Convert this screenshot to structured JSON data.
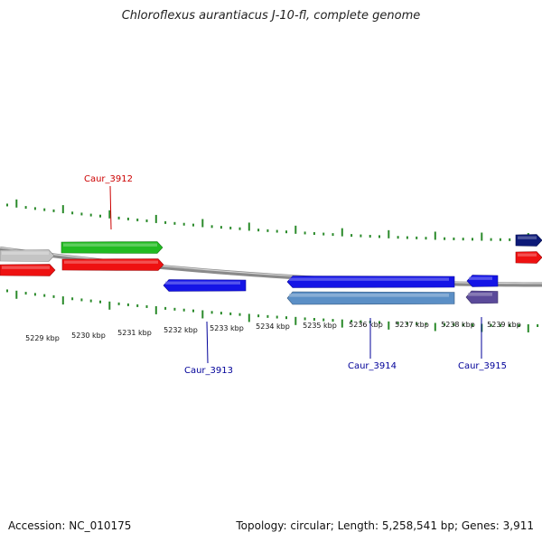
{
  "title": "Chloroflexus aurantiacus J-10-fl, complete genome",
  "footer": {
    "accession": "Accession: NC_010175",
    "summary": "Topology: circular; Length: 5,258,541 bp; Genes: 3,911"
  },
  "colors": {
    "backbone": "#8a8a8a",
    "tick": "#2a8a2a",
    "red": "#ee1111",
    "green": "#22bb22",
    "gray": "#c4c4c4",
    "blue": "#1414e6",
    "steelblue": "#5b8fc6",
    "purple": "#5b4a9a",
    "navy": "#0d1a78",
    "label_red": "#cc0000",
    "label_blue": "#000099"
  },
  "ticks": {
    "labels": [
      "5229 kbp",
      "5230 kbp",
      "5231 kbp",
      "5232 kbp",
      "5233 kbp",
      "5234 kbp",
      "5235 kbp",
      "5236 kbp",
      "5237 kbp",
      "5238 kbp",
      "5239 kbp"
    ]
  },
  "features": [
    {
      "name": "gene-gray-top-left",
      "track": "top-outer",
      "color": "gray",
      "strand": "forward"
    },
    {
      "name": "gene-green-top",
      "track": "top-outer",
      "color": "green",
      "strand": "forward"
    },
    {
      "name": "gene-navy-top-right",
      "track": "top-outer",
      "color": "navy",
      "strand": "forward"
    },
    {
      "name": "gene-red-left",
      "track": "top-inner",
      "color": "red",
      "strand": "forward"
    },
    {
      "name": "gene-red-caur3912",
      "track": "top-inner",
      "color": "red",
      "strand": "forward"
    },
    {
      "name": "gene-red-right",
      "track": "top-inner",
      "color": "red",
      "strand": "forward"
    },
    {
      "name": "gene-blue-caur3913",
      "track": "bottom-inner",
      "color": "blue",
      "strand": "reverse"
    },
    {
      "name": "gene-blue-caur3914",
      "track": "bottom-inner",
      "color": "blue",
      "strand": "reverse"
    },
    {
      "name": "gene-blue-caur3915",
      "track": "bottom-inner",
      "color": "blue",
      "strand": "reverse"
    },
    {
      "name": "gene-steelblue",
      "track": "bottom-outer",
      "color": "steelblue",
      "strand": "reverse"
    },
    {
      "name": "gene-purple",
      "track": "bottom-outer",
      "color": "purple",
      "strand": "reverse"
    }
  ],
  "gene_labels": [
    {
      "text": "Caur_3912",
      "color": "label_red"
    },
    {
      "text": "Caur_3913",
      "color": "label_blue"
    },
    {
      "text": "Caur_3914",
      "color": "label_blue"
    },
    {
      "text": "Caur_3915",
      "color": "label_blue"
    }
  ]
}
